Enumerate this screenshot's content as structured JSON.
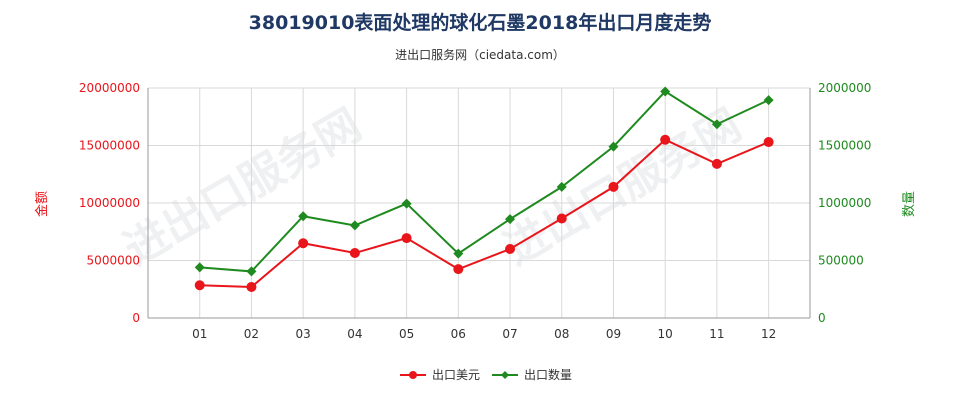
{
  "chart_data": {
    "type": "line",
    "title": "38019010表面处理的球化石墨2018年出口月度走势",
    "subtitle": "进出口服务网（ciedata.com）",
    "watermark": "进出口服务网",
    "categories": [
      "01",
      "02",
      "03",
      "04",
      "05",
      "06",
      "07",
      "08",
      "09",
      "10",
      "11",
      "12"
    ],
    "y_left": {
      "label": "金额",
      "range": [
        0,
        20000000
      ],
      "ticks": [
        "0",
        "5000000",
        "10000000",
        "15000000",
        "20000000"
      ],
      "color": "#e8151b"
    },
    "y_right": {
      "label": "数量",
      "range": [
        0,
        2000000
      ],
      "ticks": [
        "0",
        "500000",
        "1000000",
        "1500000",
        "2000000"
      ],
      "color": "#1f8a1f"
    },
    "grid": true,
    "legend_position": "bottom-center",
    "series": [
      {
        "name": "出口美元",
        "axis": "left",
        "color": "#e8151b",
        "marker": "circle",
        "values": [
          2850000,
          2700000,
          6500000,
          5650000,
          6950000,
          4250000,
          6000000,
          8650000,
          11400000,
          15500000,
          13400000,
          15300000
        ]
      },
      {
        "name": "出口数量",
        "axis": "right",
        "color": "#1f8a1f",
        "marker": "diamond",
        "values": [
          440000,
          405000,
          885000,
          805000,
          995000,
          560000,
          860000,
          1140000,
          1490000,
          1970000,
          1685000,
          1895000
        ]
      }
    ]
  }
}
